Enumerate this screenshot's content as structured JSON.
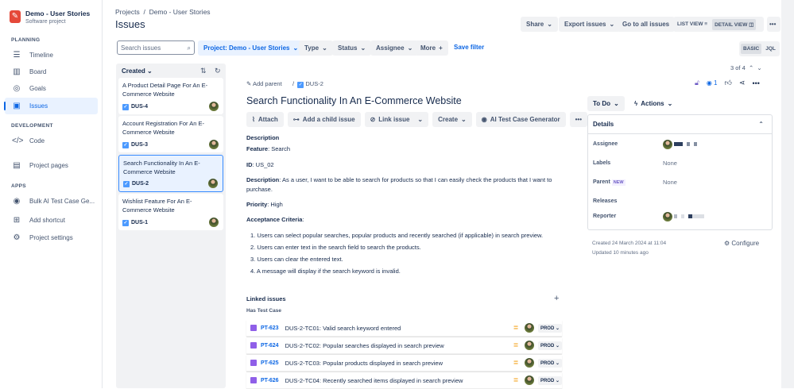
{
  "project": {
    "name": "Demo - User Stories",
    "type": "Software project"
  },
  "sidebar": {
    "planning": "PLANNING",
    "development": "DEVELOPMENT",
    "apps": "APPS",
    "items": [
      {
        "label": "Timeline",
        "icon": "timeline-icon"
      },
      {
        "label": "Board",
        "icon": "board-icon"
      },
      {
        "label": "Goals",
        "icon": "goals-icon"
      },
      {
        "label": "Issues",
        "icon": "issues-icon"
      },
      {
        "label": "Code",
        "icon": "code-icon"
      },
      {
        "label": "Project pages",
        "icon": "pages-icon"
      },
      {
        "label": "Bulk AI Test Case Ge...",
        "icon": "ai-icon"
      },
      {
        "label": "Add shortcut",
        "icon": "shortcut-icon"
      },
      {
        "label": "Project settings",
        "icon": "settings-icon"
      }
    ]
  },
  "header": {
    "breadcrumb": [
      "Projects",
      "/",
      "Demo - User Stories"
    ],
    "title": "Issues",
    "share": "Share",
    "export": "Export issues",
    "all": "Go to all issues",
    "list_view": "LIST VIEW",
    "detail_view": "DETAIL VIEW"
  },
  "filters": {
    "search_placeholder": "Search issues",
    "project": "Project: Demo - User Stories",
    "type": "Type",
    "status": "Status",
    "assignee": "Assignee",
    "more": "More",
    "save": "Save filter",
    "basic": "BASIC",
    "jql": "JQL"
  },
  "list": {
    "sort": "Created",
    "items": [
      {
        "title": "A Product Detail Page For An E-Commerce Website",
        "key": "DUS-4"
      },
      {
        "title": "Account Registration For An E-Commerce Website",
        "key": "DUS-3"
      },
      {
        "title": "Search Functionality In An E-Commerce Website",
        "key": "DUS-2"
      },
      {
        "title": "Wishlist Feature For An E-Commerce Website",
        "key": "DUS-1"
      }
    ]
  },
  "issue": {
    "add_parent": "Add parent",
    "key": "DUS-2",
    "pager": "3 of 4",
    "watchers": "1",
    "title": "Search Functionality In An E-Commerce Website",
    "actions": {
      "attach": "Attach",
      "child": "Add a child issue",
      "link": "Link issue",
      "create": "Create",
      "ai": "AI Test Case Generator"
    },
    "desc_heading": "Description",
    "feature_label": "Feature",
    "feature": ": Search",
    "id_label": "ID",
    "id": ": US_02",
    "description_label": "Description",
    "description": ": As a user, I want to be able to search for products so that I can easily check the products that I want to purchase.",
    "priority_label": "Priority",
    "priority": ": High",
    "ac_label": "Acceptance Criteria",
    "ac_colon": ":",
    "criteria": [
      "1. Users can select popular searches, popular products and recently searched (if applicable) in search preview.",
      "2. Users can enter text in the search field to search the products.",
      "3. Users can clear the entered text.",
      "4. A message will display if the search keyword is invalid."
    ],
    "linked_heading": "Linked issues",
    "link_type": "Has Test Case",
    "linked": [
      {
        "key": "PT-623",
        "summary": "DUS-2-TC01: Valid search keyword entered",
        "env": "PROD"
      },
      {
        "key": "PT-624",
        "summary": "DUS-2-TC02: Popular searches displayed in search preview",
        "env": "PROD"
      },
      {
        "key": "PT-625",
        "summary": "DUS-2-TC03: Popular products displayed in search preview",
        "env": "PROD"
      },
      {
        "key": "PT-626",
        "summary": "DUS-2-TC04: Recently searched items displayed in search preview",
        "env": "PROD"
      }
    ]
  },
  "details": {
    "status": "To Do",
    "actions": "Actions",
    "heading": "Details",
    "assignee": "Assignee",
    "labels": "Labels",
    "labels_value": "None",
    "parent": "Parent",
    "new_badge": "NEW",
    "parent_value": "None",
    "releases": "Releases",
    "reporter": "Reporter",
    "created": "Created 24 March 2024 at 11:04",
    "updated": "Updated 10 minutes ago",
    "configure": "Configure"
  },
  "colors": {
    "accent": "#0c66e4",
    "selected": "#e9f2ff",
    "test_icon": "#8f5fe8",
    "priority": "#f5a623"
  }
}
